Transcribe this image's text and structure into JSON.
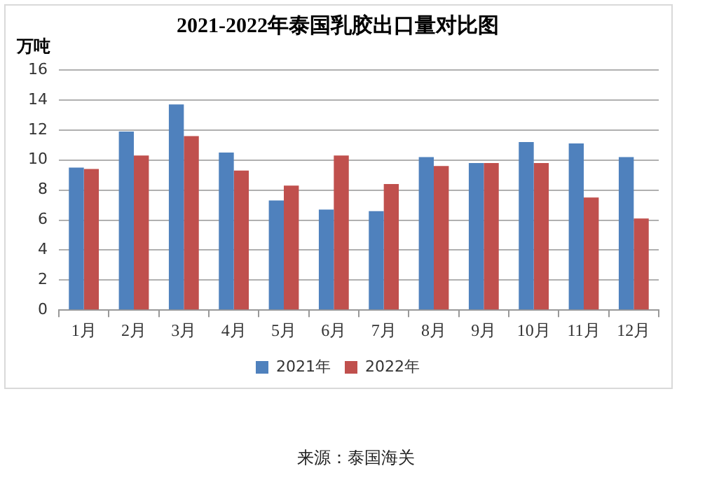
{
  "chart_data": {
    "type": "bar",
    "title": "2021-2022年泰国乳胶出口量对比图",
    "ylabel": "万吨",
    "categories": [
      "1月",
      "2月",
      "3月",
      "4月",
      "5月",
      "6月",
      "7月",
      "8月",
      "9月",
      "10月",
      "11月",
      "12月"
    ],
    "series": [
      {
        "name": "2021年",
        "color": "#4f81bd",
        "values": [
          9.5,
          11.9,
          13.7,
          10.5,
          7.3,
          6.7,
          6.6,
          10.2,
          9.8,
          11.2,
          11.1,
          10.2
        ]
      },
      {
        "name": "2022年",
        "color": "#c0504d",
        "values": [
          9.4,
          10.3,
          11.6,
          9.3,
          8.3,
          10.3,
          8.4,
          9.6,
          9.8,
          9.8,
          7.5,
          6.1
        ]
      }
    ],
    "ylim": [
      0,
      16
    ],
    "yticks": [
      0,
      2,
      4,
      6,
      8,
      10,
      12,
      14,
      16
    ],
    "grid": "y",
    "legend": "bottom",
    "annotations": [
      "来源：泰国海关"
    ]
  }
}
